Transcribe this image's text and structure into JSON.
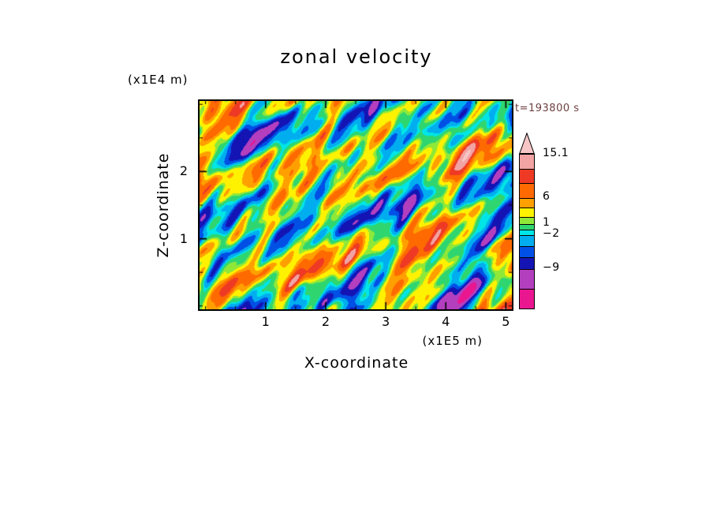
{
  "page": {
    "background_color": "#ffffff"
  },
  "chart_data": {
    "type": "heatmap",
    "title": "zonal velocity",
    "timestamp": "t=193800 s",
    "timestamp_color": "#6e4040",
    "xlabel": "X-coordinate",
    "x_unit": "(x1E5 m)",
    "ylabel": "Z-coordinate",
    "y_unit": "(x1E4 m)",
    "xlim": [
      -0.1,
      5.1
    ],
    "ylim": [
      -0.05,
      3.05
    ],
    "x_ticks": [
      1,
      2,
      3,
      4,
      5
    ],
    "y_ticks": [
      1,
      2
    ],
    "minor_tick_step": 0.5,
    "grid": false,
    "bands": {
      "levels": [
        -13,
        -9,
        -6,
        -4,
        -2,
        -1,
        1,
        2,
        4,
        6,
        9,
        12,
        15.1
      ],
      "colors": [
        "#EA1690",
        "#B33FBF",
        "#1414B4",
        "#0050E6",
        "#00AEEF",
        "#00E5E5",
        "#2FD670",
        "#8FE838",
        "#FFF200",
        "#FFA000",
        "#FF6A00",
        "#EE3A24",
        "#F2A3A3",
        "#F6C6C6"
      ]
    },
    "colorbar": {
      "arrow_color": "#F6C6C6",
      "segment_heights": [
        18,
        18,
        19,
        12,
        12,
        9,
        7,
        7,
        14,
        14,
        15,
        25,
        25
      ],
      "labels": [
        {
          "text": "15.1",
          "offset": 0
        },
        {
          "text": "6",
          "offset": 55
        },
        {
          "text": "1",
          "offset": 88
        },
        {
          "text": "−2",
          "offset": 102
        },
        {
          "text": "−9",
          "offset": 145
        }
      ]
    },
    "field": {
      "bias": 0.8,
      "modes": [
        [
          0.5,
          2.3,
          3.0,
          1.7
        ],
        [
          3.2,
          1.1,
          3.4,
          0.4
        ],
        [
          1.8,
          3.6,
          2.6,
          4.9
        ],
        [
          6.1,
          2.4,
          2.2,
          2.8
        ],
        [
          9.3,
          5.2,
          1.6,
          5.5
        ],
        [
          4.4,
          4.1,
          1.9,
          1.1
        ],
        [
          12.7,
          3.3,
          1.3,
          3.7
        ],
        [
          7.6,
          6.8,
          1.2,
          0.9
        ],
        [
          16.4,
          8.1,
          0.9,
          2.3
        ],
        [
          2.7,
          0.7,
          2.8,
          5.9
        ],
        [
          10.8,
          1.9,
          1.4,
          4.2
        ],
        [
          20.3,
          5.7,
          0.8,
          1.5
        ],
        [
          5.5,
          9.4,
          0.9,
          3.1
        ],
        [
          14.2,
          11.3,
          0.7,
          0.2
        ]
      ]
    }
  }
}
